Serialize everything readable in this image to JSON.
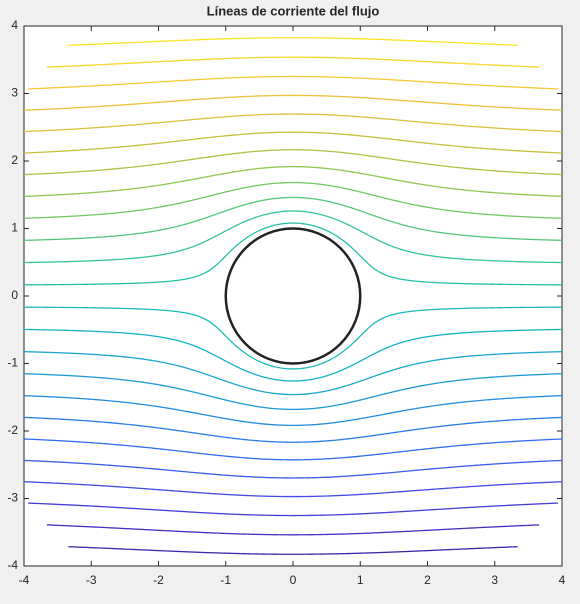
{
  "chart_data": {
    "type": "contour",
    "title": "Líneas de corriente del flujo",
    "xlim": [
      -4,
      4
    ],
    "ylim": [
      -4,
      4
    ],
    "xticks": [
      -4,
      -3,
      -2,
      -1,
      0,
      1,
      2,
      3,
      4
    ],
    "yticks": [
      -4,
      -3,
      -2,
      -1,
      0,
      1,
      2,
      3,
      4
    ],
    "levels": [
      -3.565,
      -3.255,
      -2.945,
      -2.635,
      -2.325,
      -2.015,
      -1.705,
      -1.395,
      -1.085,
      -0.775,
      -0.465,
      -0.155,
      0.155,
      0.465,
      0.775,
      1.085,
      1.395,
      1.705,
      2.015,
      2.325,
      2.635,
      2.945,
      3.255,
      3.565
    ],
    "colormap": [
      "#3e26a8",
      "#4743e3",
      "#2f6ff0",
      "#1e96d8",
      "#14b5c4",
      "#2fc59b",
      "#7dc95b",
      "#c6bf3d",
      "#f4c13b",
      "#f9e51d"
    ],
    "cylinder_radius": 1,
    "domain_radius": 5,
    "cylinder_color": "#222222"
  }
}
